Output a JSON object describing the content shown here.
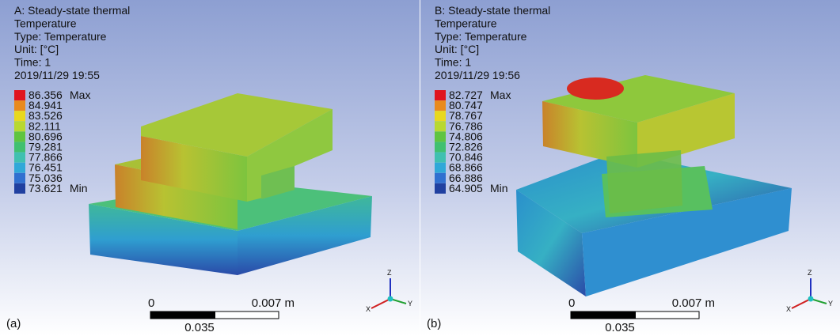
{
  "panels": [
    {
      "label": "(a)",
      "header": [
        "A: Steady-state thermal",
        "Temperature",
        "Type: Temperature",
        "Unit: [°C]",
        "Time: 1",
        "2019/11/29 19:55"
      ],
      "legend": [
        {
          "value": 86.356,
          "tag": "Max"
        },
        {
          "value": 84.941
        },
        {
          "value": 83.526
        },
        {
          "value": 82.111
        },
        {
          "value": 80.696
        },
        {
          "value": 79.281
        },
        {
          "value": 77.866
        },
        {
          "value": 76.451
        },
        {
          "value": 75.036
        },
        {
          "value": 73.621,
          "tag": "Min"
        }
      ],
      "scale_bar": {
        "start": 0,
        "end": "0.007 m",
        "mid": 0.035
      },
      "triad": {
        "z": "Z",
        "y": "Y",
        "x": "X"
      }
    },
    {
      "label": "(b)",
      "header": [
        "B: Steady-state thermal",
        "Temperature",
        "Type: Temperature",
        "Unit: [°C]",
        "Time: 1",
        "2019/11/29 19:56"
      ],
      "legend": [
        {
          "value": 82.727,
          "tag": "Max"
        },
        {
          "value": 80.747
        },
        {
          "value": 78.767
        },
        {
          "value": 76.786
        },
        {
          "value": 74.806
        },
        {
          "value": 72.826
        },
        {
          "value": 70.846
        },
        {
          "value": 68.866
        },
        {
          "value": 66.886
        },
        {
          "value": 64.905,
          "tag": "Min"
        }
      ],
      "scale_bar": {
        "start": 0,
        "end": "0.007 m",
        "mid": 0.035
      },
      "triad": {
        "z": "Z",
        "y": "Y",
        "x": "X"
      }
    }
  ]
}
